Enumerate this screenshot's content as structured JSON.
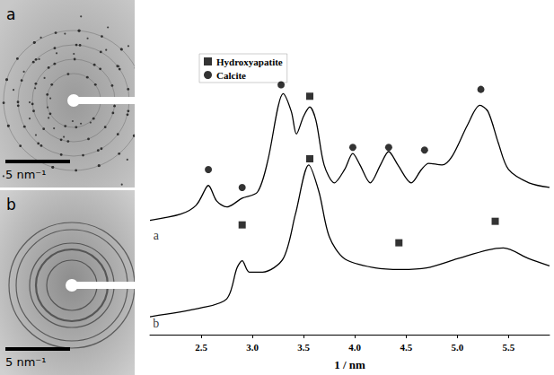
{
  "chart_data": {
    "type": "line",
    "x_label": "1 / nm",
    "xlim": [
      2.0,
      5.9
    ],
    "xticks": [
      2.5,
      {
        "value": 3,
        "label": "3.0"
      },
      3.5,
      {
        "value": 4,
        "label": "4.0"
      },
      4.5,
      {
        "value": 5,
        "label": "5.0"
      },
      5.5
    ],
    "ylim": [
      0,
      100
    ],
    "tick_labels": "x",
    "grid": false,
    "legend": "top-left",
    "series": [
      {
        "type": "line",
        "color": "#000000",
        "line_style": "solid",
        "x": [
          2.0,
          2.3,
          2.45,
          2.55,
          2.57,
          2.65,
          2.75,
          2.9,
          3.05,
          3.15,
          3.25,
          3.3,
          3.38,
          3.43,
          3.5,
          3.56,
          3.62,
          3.7,
          3.8,
          3.9,
          3.98,
          4.05,
          4.15,
          4.25,
          4.33,
          4.42,
          4.55,
          4.65,
          4.72,
          4.85,
          4.95,
          5.1,
          5.22,
          5.3,
          5.4,
          5.5,
          5.7,
          5.9
        ],
        "values": [
          35.1,
          37.0,
          39.7,
          45.2,
          45.8,
          41.1,
          39.2,
          41.9,
          43.8,
          53.4,
          69.9,
          74.0,
          68.5,
          61.6,
          67.1,
          69.9,
          65.8,
          52.1,
          46.6,
          50.7,
          55.6,
          52.1,
          46.6,
          52.1,
          56.2,
          52.1,
          46.6,
          50.7,
          52.6,
          52.1,
          54.8,
          64.4,
          70.4,
          68.5,
          58.9,
          50.7,
          46.6,
          45.2
        ]
      },
      {
        "type": "line",
        "color": "#000000",
        "line_style": "solid",
        "x": [
          2.0,
          2.5,
          2.75,
          2.85,
          2.9,
          2.97,
          3.1,
          3.3,
          3.42,
          3.55,
          3.65,
          3.75,
          3.9,
          4.2,
          4.45,
          4.7,
          5.0,
          5.3,
          5.45,
          5.7,
          5.9
        ],
        "values": [
          5.5,
          8.2,
          11.0,
          20.5,
          22.7,
          19.2,
          19.2,
          23.3,
          37.0,
          52.1,
          43.8,
          30.1,
          23.3,
          20.5,
          20.0,
          20.5,
          23.3,
          26.0,
          26.6,
          23.3,
          21.1
        ]
      },
      {
        "name": "Hydroxyapatite",
        "type": "scatter",
        "marker": "square",
        "color": "#000000",
        "x": [
          3.56,
          2.9,
          3.56,
          4.43,
          5.37
        ],
        "values": [
          73.2,
          33.7,
          54.0,
          28.2,
          34.8
        ]
      },
      {
        "name": "Calcite",
        "type": "scatter",
        "marker": "circle",
        "color": "#000000",
        "x": [
          2.57,
          2.9,
          3.28,
          3.98,
          4.33,
          4.68,
          5.23
        ],
        "values": [
          50.7,
          45.2,
          76.7,
          57.5,
          57.5,
          56.7,
          75.3
        ]
      }
    ],
    "annotations": [
      {
        "text": "a",
        "x": 2.06,
        "y": 30.5
      },
      {
        "text": "b",
        "x": 2.06,
        "y": 3.5
      }
    ]
  },
  "images": [
    {
      "label": "a",
      "scale_bar": "5 nm⁻¹"
    },
    {
      "label": "b",
      "scale_bar": "5 nm⁻¹"
    }
  ]
}
